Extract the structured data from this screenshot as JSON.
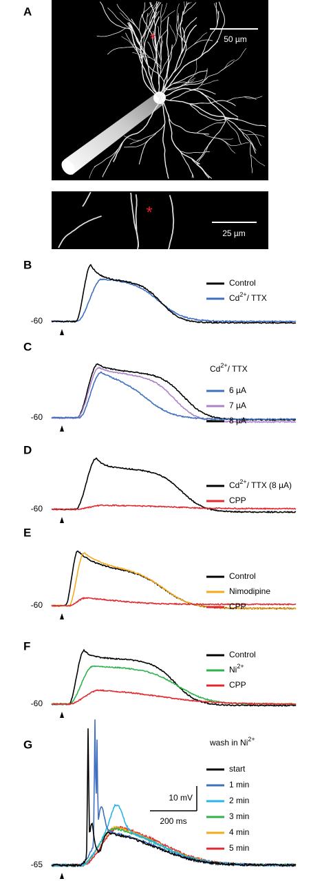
{
  "panel_a": {
    "label": "A",
    "scale_bar": "50 µm",
    "inset_scale_bar": "25 µm"
  },
  "panel_b": {
    "label": "B",
    "baseline": -60,
    "legend": [
      {
        "name": "Control",
        "color": "#000000"
      },
      {
        "name": "Cd",
        "sup": "2+",
        "suffix": "/ TTX",
        "color": "#3f6fbf"
      }
    ]
  },
  "panel_c": {
    "label": "C",
    "baseline": -60,
    "legend_title": {
      "name": "Cd",
      "sup": "2+",
      "suffix": "/ TTX"
    },
    "legend": [
      {
        "name": "6 µA",
        "color": "#3f6fbf"
      },
      {
        "name": "7 µA",
        "color": "#a983c9"
      },
      {
        "name": "8 µA",
        "color": "#000000"
      }
    ]
  },
  "panel_d": {
    "label": "D",
    "baseline": -60,
    "legend": [
      {
        "name": "Cd",
        "sup": "2+",
        "suffix": "/ TTX (8 µA)",
        "color": "#000000"
      },
      {
        "name": "CPP",
        "color": "#e0282e"
      }
    ]
  },
  "panel_e": {
    "label": "E",
    "baseline": -60,
    "legend": [
      {
        "name": "Control",
        "color": "#000000"
      },
      {
        "name": "Nimodipine",
        "color": "#f4aa1c"
      },
      {
        "name": "CPP",
        "color": "#e0282e"
      }
    ]
  },
  "panel_f": {
    "label": "F",
    "baseline": -60,
    "legend": [
      {
        "name": "Control",
        "color": "#000000"
      },
      {
        "name": "Ni",
        "sup": "2+",
        "color": "#2db34a"
      },
      {
        "name": "CPP",
        "color": "#e0282e"
      }
    ]
  },
  "panel_g": {
    "label": "G",
    "baseline": -65,
    "legend_title": {
      "name": "wash in Ni",
      "sup": "2+"
    },
    "legend": [
      {
        "name": "start",
        "color": "#000000"
      },
      {
        "name": "1 min",
        "color": "#3f6fbf"
      },
      {
        "name": "2 min",
        "color": "#27b5e8"
      },
      {
        "name": "3 min",
        "color": "#2db34a"
      },
      {
        "name": "4 min",
        "color": "#f4aa1c"
      },
      {
        "name": "5 min",
        "color": "#e0282e"
      }
    ],
    "scale_bar_v": "10 mV",
    "scale_bar_h": "200 ms"
  }
}
